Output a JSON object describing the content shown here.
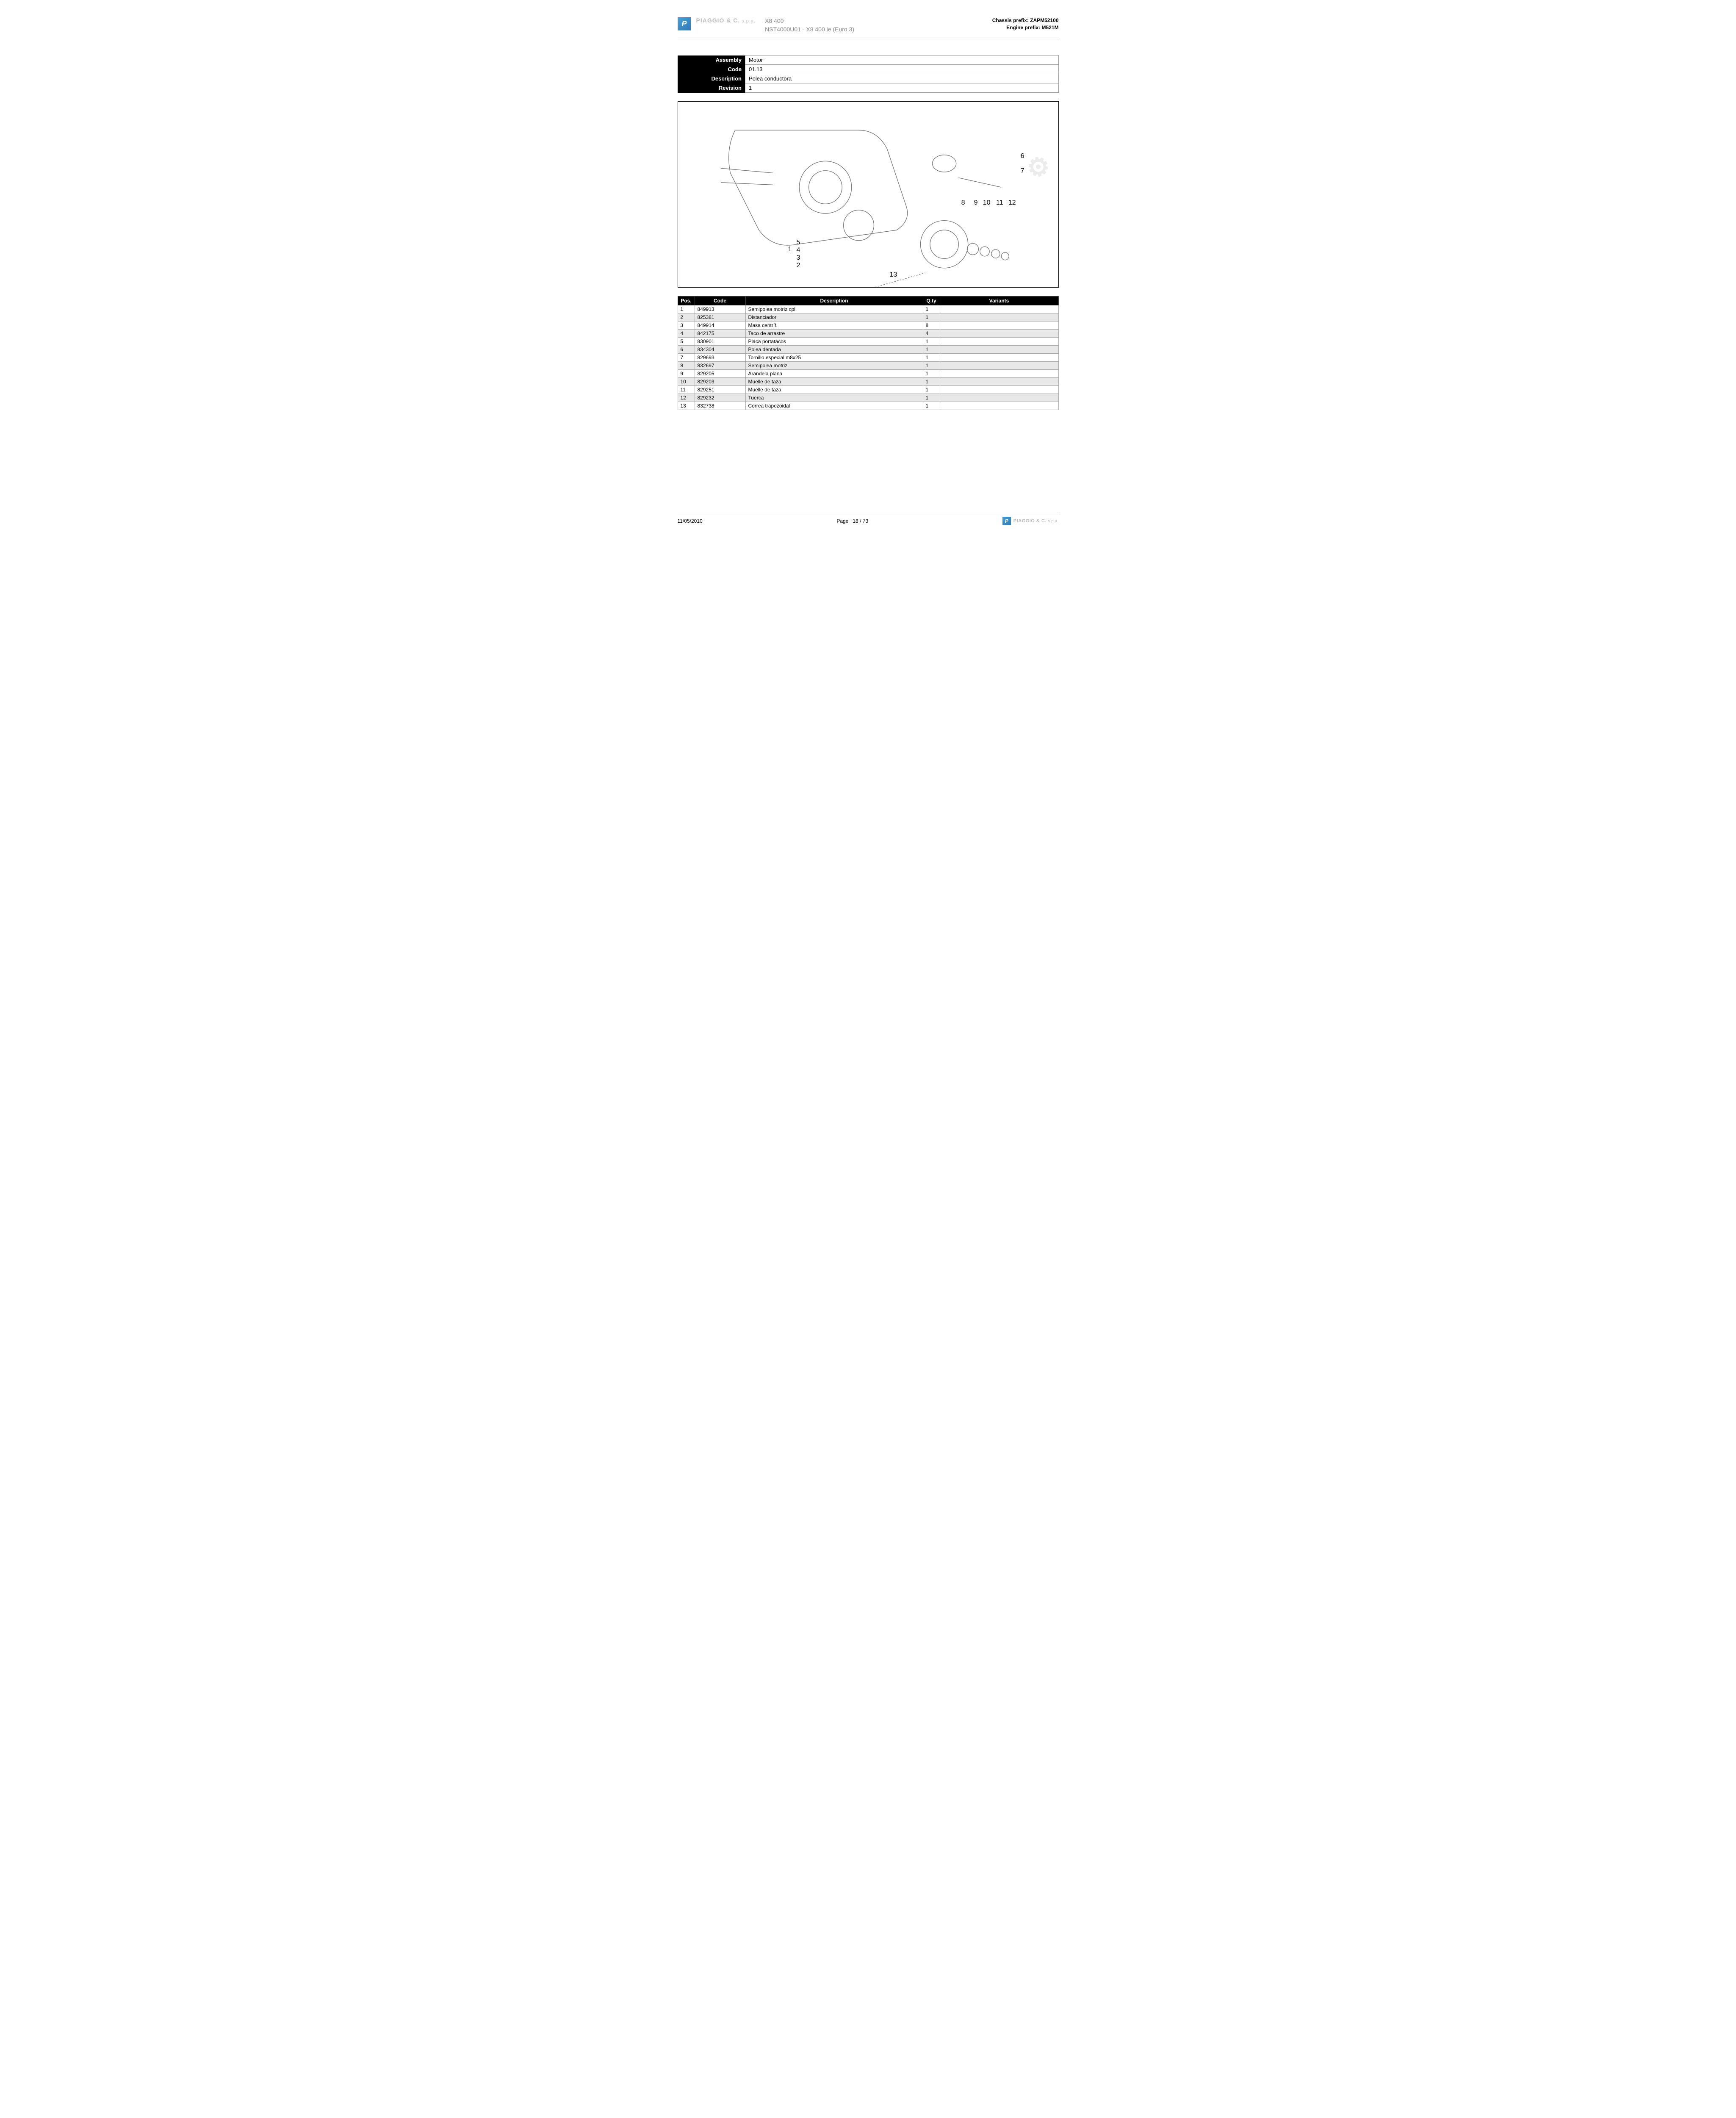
{
  "header": {
    "brand": "PIAGGIO & C.",
    "brand_suffix": "s.p.a.",
    "logo_letter": "P",
    "model_line1": "X8 400",
    "model_line2": "NST4000U01 - X8 400 ie (Euro 3)",
    "chassis_label": "Chassis prefix:",
    "chassis_value": "ZAPM52100",
    "engine_label": "Engine prefix:",
    "engine_value": "M521M"
  },
  "info": {
    "labels": {
      "assembly": "Assembly",
      "code": "Code",
      "description": "Description",
      "revision": "Revision"
    },
    "values": {
      "assembly": "Motor",
      "code": "01.13",
      "description": "Polea conductora",
      "revision": "1"
    }
  },
  "diagram": {
    "callouts": [
      "1",
      "2",
      "3",
      "4",
      "5",
      "6",
      "7",
      "8",
      "9",
      "10",
      "11",
      "12",
      "13"
    ],
    "watermark_text": "⚙"
  },
  "parts_table": {
    "headers": {
      "pos": "Pos.",
      "code": "Code",
      "description": "Description",
      "qty": "Q.ty",
      "variants": "Variants"
    },
    "rows": [
      {
        "pos": "1",
        "code": "849913",
        "description": "Semipolea motriz cpl.",
        "qty": "1",
        "variants": ""
      },
      {
        "pos": "2",
        "code": "825381",
        "description": "Distanciador",
        "qty": "1",
        "variants": ""
      },
      {
        "pos": "3",
        "code": "849914",
        "description": "Masa centríf.",
        "qty": "8",
        "variants": ""
      },
      {
        "pos": "4",
        "code": "842175",
        "description": "Taco de arrastre",
        "qty": "4",
        "variants": ""
      },
      {
        "pos": "5",
        "code": "830901",
        "description": "Placa portatacos",
        "qty": "1",
        "variants": ""
      },
      {
        "pos": "6",
        "code": "834304",
        "description": "Polea dentada",
        "qty": "1",
        "variants": ""
      },
      {
        "pos": "7",
        "code": "829693",
        "description": "Tornillo especial m8x25",
        "qty": "1",
        "variants": ""
      },
      {
        "pos": "8",
        "code": "832697",
        "description": "Semipolea motriz",
        "qty": "1",
        "variants": ""
      },
      {
        "pos": "9",
        "code": "829205",
        "description": "Arandela plana",
        "qty": "1",
        "variants": ""
      },
      {
        "pos": "10",
        "code": "829203",
        "description": "Muelle de taza",
        "qty": "1",
        "variants": ""
      },
      {
        "pos": "11",
        "code": "829251",
        "description": "Muelle de taza",
        "qty": "1",
        "variants": ""
      },
      {
        "pos": "12",
        "code": "829232",
        "description": "Tuerca",
        "qty": "1",
        "variants": ""
      },
      {
        "pos": "13",
        "code": "832738",
        "description": "Correa trapezoidal",
        "qty": "1",
        "variants": ""
      }
    ]
  },
  "footer": {
    "date": "11/05/2010",
    "page_label": "Page",
    "page_current": "18",
    "page_sep": "/",
    "page_total": "73",
    "brand": "PIAGGIO & C.",
    "brand_suffix": "s.p.a.",
    "logo_letter": "P"
  }
}
